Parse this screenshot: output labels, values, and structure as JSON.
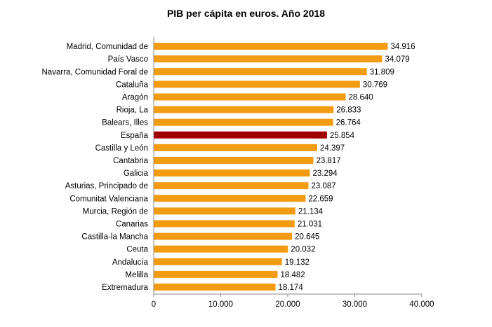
{
  "chart_data": {
    "type": "bar",
    "orientation": "horizontal",
    "title": "PIB per cápita en euros. Año 2018",
    "xlabel": "",
    "ylabel": "",
    "xlim": [
      0,
      40000
    ],
    "ticks": [
      0,
      10000,
      20000,
      30000,
      40000
    ],
    "tick_labels": [
      "0",
      "10.000",
      "20.000",
      "30.000",
      "40.000"
    ],
    "grid": false,
    "legend": "none",
    "colors": {
      "default": "#F39C12",
      "highlight": "#A00000"
    },
    "categories": [
      "Madrid, Comunidad de",
      "País Vasco",
      "Navarra, Comunidad Foral de",
      "Cataluña",
      "Aragón",
      "Rioja, La",
      "Balears, Illes",
      "España",
      "Castilla y León",
      "Cantabria",
      "Galicia",
      "Asturias, Principado de",
      "Comunitat Valenciana",
      "Murcia, Región de",
      "Canarias",
      "Castilla-la Mancha",
      "Ceuta",
      "Andalucía",
      "Melilla",
      "Extremadura"
    ],
    "values": [
      34916,
      34079,
      31809,
      30769,
      28640,
      26833,
      26764,
      25854,
      24397,
      23817,
      23294,
      23087,
      22659,
      21134,
      21031,
      20645,
      20032,
      19132,
      18482,
      18174
    ],
    "value_labels": [
      "34.916",
      "34.079",
      "31.809",
      "30.769",
      "28.640",
      "26.833",
      "26.764",
      "25.854",
      "24.397",
      "23.817",
      "23.294",
      "23.087",
      "22.659",
      "21.134",
      "21.031",
      "20.645",
      "20.032",
      "19.132",
      "18.482",
      "18.174"
    ],
    "highlight": [
      "España"
    ]
  }
}
